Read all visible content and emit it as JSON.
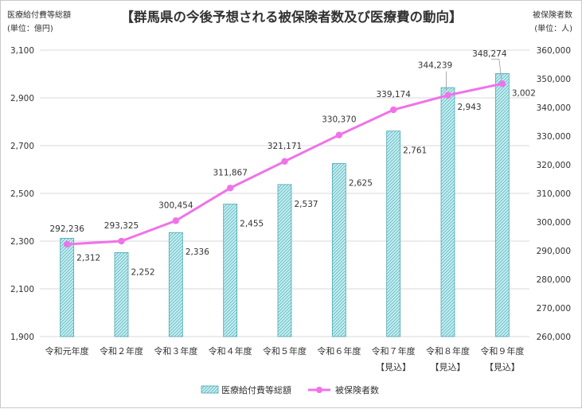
{
  "colors": {
    "bar_fill": "#c9eef0",
    "bar_hatch": "#5ab9c3",
    "bar_stroke": "#4aa8b3",
    "line": "#f072e8",
    "grid": "#d9d9d9",
    "text": "#333333"
  },
  "icons": {
    "legend_bar": "hatched-square-icon",
    "legend_line": "line-with-dot-icon"
  },
  "chart_data": {
    "type": "bar",
    "title": "【群馬県の今後予想される被保険者数及び医療費の動向】",
    "left_axis_title": [
      "医療給付費等総額",
      "(単位：億円)"
    ],
    "right_axis_title": [
      "被保険者数",
      "(単位：人)"
    ],
    "categories": [
      [
        "令和元年度"
      ],
      [
        "令和２年度"
      ],
      [
        "令和３年度"
      ],
      [
        "令和４年度"
      ],
      [
        "令和５年度"
      ],
      [
        "令和６年度"
      ],
      [
        "令和７年度",
        "【見込】"
      ],
      [
        "令和８年度",
        "【見込】"
      ],
      [
        "令和９年度",
        "【見込】"
      ]
    ],
    "y_left_range": [
      1900,
      3100
    ],
    "y_left_ticks": [
      "1,900",
      "2,100",
      "2,300",
      "2,500",
      "2,700",
      "2,900",
      "3,100"
    ],
    "y_right_range": [
      260000,
      360000
    ],
    "y_right_ticks": [
      "260,000",
      "270,000",
      "280,000",
      "290,000",
      "300,000",
      "310,000",
      "320,000",
      "330,000",
      "340,000",
      "350,000",
      "360,000"
    ],
    "grid": true,
    "legend_position": "bottom",
    "series": [
      {
        "name": "医療給付費等総額",
        "type": "bar",
        "axis": "left",
        "values": [
          2312,
          2252,
          2336,
          2455,
          2537,
          2625,
          2761,
          2943,
          3002
        ],
        "labels": [
          "2,312",
          "2,252",
          "2,336",
          "2,455",
          "2,537",
          "2,625",
          "2,761",
          "2,943",
          "3,002"
        ]
      },
      {
        "name": "被保険者数",
        "type": "line",
        "axis": "right",
        "values": [
          292236,
          293325,
          300454,
          311867,
          321171,
          330370,
          339174,
          344239,
          348274
        ],
        "labels": [
          "292,236",
          "293,325",
          "300,454",
          "311,867",
          "321,171",
          "330,370",
          "339,174",
          "344,239",
          "348,274"
        ]
      }
    ]
  }
}
